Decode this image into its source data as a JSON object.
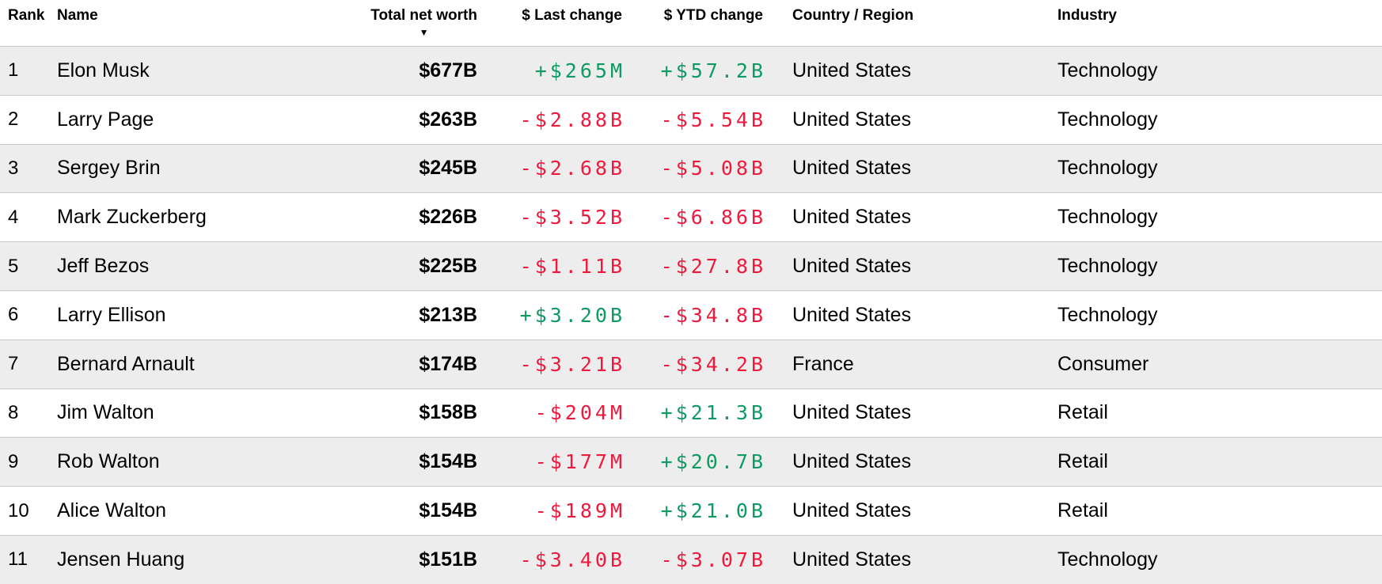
{
  "colors": {
    "positive": "#0d9a63",
    "negative": "#ee1a3d",
    "row_alt": "#ededed",
    "divider": "#c9c9c9",
    "text": "#000000"
  },
  "table": {
    "headers": {
      "rank": "Rank",
      "name": "Name",
      "net_worth": "Total net worth",
      "last_change": "$ Last change",
      "ytd_change": "$ YTD change",
      "country": "Country / Region",
      "industry": "Industry"
    },
    "sort": {
      "column": "Total net worth",
      "direction": "descending",
      "glyph": "▼"
    },
    "rows": [
      {
        "rank": "1",
        "name": "Elon Musk",
        "net_worth": "$677B",
        "last_change": "+$265M",
        "last_change_dir": "pos",
        "ytd_change": "+$57.2B",
        "ytd_change_dir": "pos",
        "country": "United States",
        "industry": "Technology"
      },
      {
        "rank": "2",
        "name": "Larry Page",
        "net_worth": "$263B",
        "last_change": "-$2.88B",
        "last_change_dir": "neg",
        "ytd_change": "-$5.54B",
        "ytd_change_dir": "neg",
        "country": "United States",
        "industry": "Technology"
      },
      {
        "rank": "3",
        "name": "Sergey Brin",
        "net_worth": "$245B",
        "last_change": "-$2.68B",
        "last_change_dir": "neg",
        "ytd_change": "-$5.08B",
        "ytd_change_dir": "neg",
        "country": "United States",
        "industry": "Technology"
      },
      {
        "rank": "4",
        "name": "Mark Zuckerberg",
        "net_worth": "$226B",
        "last_change": "-$3.52B",
        "last_change_dir": "neg",
        "ytd_change": "-$6.86B",
        "ytd_change_dir": "neg",
        "country": "United States",
        "industry": "Technology"
      },
      {
        "rank": "5",
        "name": "Jeff Bezos",
        "net_worth": "$225B",
        "last_change": "-$1.11B",
        "last_change_dir": "neg",
        "ytd_change": "-$27.8B",
        "ytd_change_dir": "neg",
        "country": "United States",
        "industry": "Technology"
      },
      {
        "rank": "6",
        "name": "Larry Ellison",
        "net_worth": "$213B",
        "last_change": "+$3.20B",
        "last_change_dir": "pos",
        "ytd_change": "-$34.8B",
        "ytd_change_dir": "neg",
        "country": "United States",
        "industry": "Technology"
      },
      {
        "rank": "7",
        "name": "Bernard Arnault",
        "net_worth": "$174B",
        "last_change": "-$3.21B",
        "last_change_dir": "neg",
        "ytd_change": "-$34.2B",
        "ytd_change_dir": "neg",
        "country": "France",
        "industry": "Consumer"
      },
      {
        "rank": "8",
        "name": "Jim Walton",
        "net_worth": "$158B",
        "last_change": "-$204M",
        "last_change_dir": "neg",
        "ytd_change": "+$21.3B",
        "ytd_change_dir": "pos",
        "country": "United States",
        "industry": "Retail"
      },
      {
        "rank": "9",
        "name": "Rob Walton",
        "net_worth": "$154B",
        "last_change": "-$177M",
        "last_change_dir": "neg",
        "ytd_change": "+$20.7B",
        "ytd_change_dir": "pos",
        "country": "United States",
        "industry": "Retail"
      },
      {
        "rank": "10",
        "name": "Alice Walton",
        "net_worth": "$154B",
        "last_change": "-$189M",
        "last_change_dir": "neg",
        "ytd_change": "+$21.0B",
        "ytd_change_dir": "pos",
        "country": "United States",
        "industry": "Retail"
      },
      {
        "rank": "11",
        "name": "Jensen Huang",
        "net_worth": "$151B",
        "last_change": "-$3.40B",
        "last_change_dir": "neg",
        "ytd_change": "-$3.07B",
        "ytd_change_dir": "neg",
        "country": "United States",
        "industry": "Technology"
      }
    ]
  }
}
